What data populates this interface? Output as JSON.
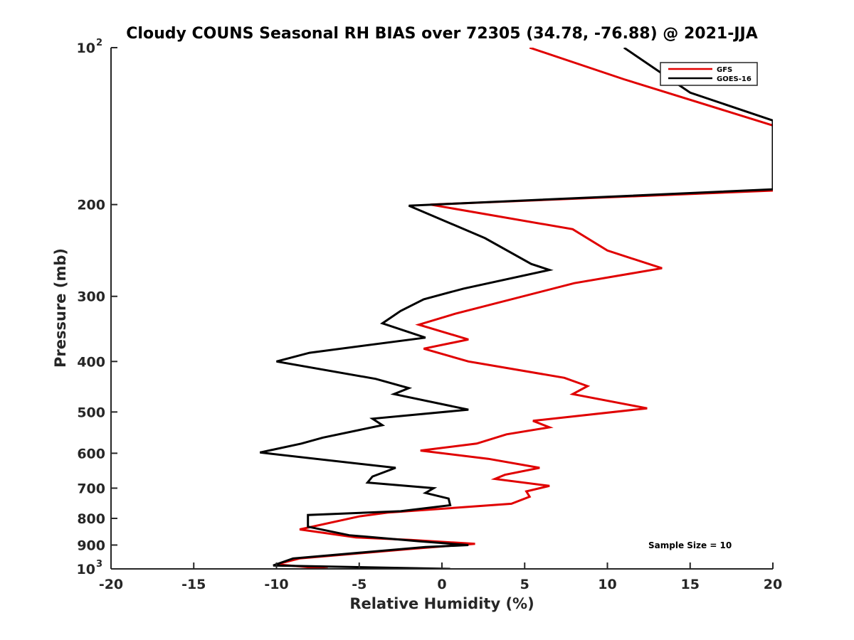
{
  "chart_data": {
    "type": "line",
    "title": "Cloudy COUNS Seasonal RH BIAS over 72305 (34.78, -76.88) @ 2021-JJA",
    "xlabel": "Relative Humidity (%)",
    "ylabel": "Pressure (mb)",
    "xlim": [
      -20,
      20
    ],
    "ylim": [
      100,
      1000
    ],
    "yscale": "log",
    "y_reversed": true,
    "grid": false,
    "legend_position": "top-right",
    "x_ticks": [
      "-20",
      "-15",
      "-10",
      "-5",
      "0",
      "5",
      "10",
      "15",
      "20"
    ],
    "y_ticks": [
      {
        "label": "10",
        "sup": "2",
        "value": 100
      },
      {
        "label": "200",
        "sup": "",
        "value": 200
      },
      {
        "label": "300",
        "sup": "",
        "value": 300
      },
      {
        "label": "400",
        "sup": "",
        "value": 400
      },
      {
        "label": "500",
        "sup": "",
        "value": 500
      },
      {
        "label": "600",
        "sup": "",
        "value": 600
      },
      {
        "label": "700",
        "sup": "",
        "value": 700
      },
      {
        "label": "800",
        "sup": "",
        "value": 800
      },
      {
        "label": "900",
        "sup": "",
        "value": 900
      },
      {
        "label": "10",
        "sup": "3",
        "value": 1000
      }
    ],
    "series": [
      {
        "name": "GFS",
        "color": "#e00000",
        "points": [
          [
            5.3,
            100
          ],
          [
            11.0,
            115
          ],
          [
            20.0,
            141
          ],
          [
            20.0,
            188
          ],
          [
            -0.7,
            200
          ],
          [
            7.9,
            223
          ],
          [
            10.0,
            245
          ],
          [
            13.3,
            265
          ],
          [
            8.0,
            283
          ],
          [
            0.8,
            324
          ],
          [
            -1.4,
            340
          ],
          [
            1.6,
            363
          ],
          [
            -1.1,
            378
          ],
          [
            1.6,
            400
          ],
          [
            7.4,
            430
          ],
          [
            8.8,
            446
          ],
          [
            7.9,
            462
          ],
          [
            12.4,
            492
          ],
          [
            5.5,
            520
          ],
          [
            6.5,
            535
          ],
          [
            3.9,
            552
          ],
          [
            2.1,
            575
          ],
          [
            -1.3,
            593
          ],
          [
            2.8,
            615
          ],
          [
            5.9,
            640
          ],
          [
            3.8,
            660
          ],
          [
            3.2,
            672
          ],
          [
            6.5,
            693
          ],
          [
            5.1,
            710
          ],
          [
            5.3,
            727
          ],
          [
            4.2,
            750
          ],
          [
            -3.3,
            780
          ],
          [
            -5.0,
            793
          ],
          [
            -8.6,
            840
          ],
          [
            -5.2,
            870
          ],
          [
            -1.9,
            880
          ],
          [
            2.0,
            895
          ],
          [
            -1.8,
            915
          ],
          [
            -8.6,
            955
          ],
          [
            -10.0,
            980
          ],
          [
            -6.9,
            1000
          ]
        ]
      },
      {
        "name": "GOES-16",
        "color": "#000000",
        "points": [
          [
            11.0,
            100
          ],
          [
            15.0,
            122
          ],
          [
            20.0,
            138
          ],
          [
            20.0,
            187
          ],
          [
            -2.0,
            201
          ],
          [
            2.6,
            232
          ],
          [
            5.4,
            260
          ],
          [
            6.5,
            267
          ],
          [
            1.3,
            290
          ],
          [
            -1.1,
            304
          ],
          [
            -2.5,
            320
          ],
          [
            -3.6,
            338
          ],
          [
            -1.0,
            360
          ],
          [
            -8.0,
            385
          ],
          [
            -10.0,
            400
          ],
          [
            -4.0,
            432
          ],
          [
            -2.0,
            450
          ],
          [
            -2.9,
            462
          ],
          [
            1.6,
            495
          ],
          [
            -4.2,
            515
          ],
          [
            -3.6,
            530
          ],
          [
            -7.2,
            560
          ],
          [
            -8.5,
            575
          ],
          [
            -11.0,
            598
          ],
          [
            -2.8,
            640
          ],
          [
            -4.2,
            665
          ],
          [
            -4.5,
            683
          ],
          [
            -0.5,
            700
          ],
          [
            -1.0,
            715
          ],
          [
            0.4,
            733
          ],
          [
            0.5,
            755
          ],
          [
            -2.5,
            775
          ],
          [
            -8.1,
            788
          ],
          [
            -8.1,
            830
          ],
          [
            -5.6,
            862
          ],
          [
            -1.4,
            885
          ],
          [
            1.6,
            900
          ],
          [
            -1.0,
            908
          ],
          [
            -9.0,
            955
          ],
          [
            -10.2,
            985
          ],
          [
            0.5,
            1000
          ]
        ]
      }
    ],
    "annotations": [
      "Sample Size = 10"
    ]
  }
}
